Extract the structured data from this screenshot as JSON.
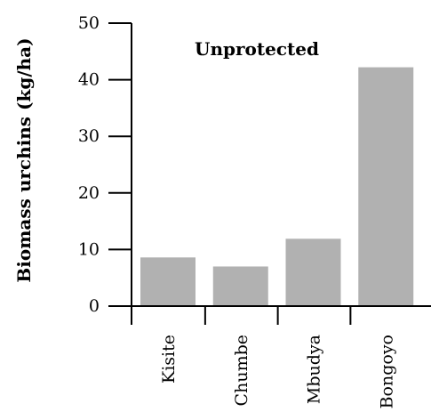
{
  "chart_data": {
    "type": "bar",
    "title": "Unprotected",
    "xlabel": "",
    "ylabel": "Biomass urchins (kg/ha)",
    "categories": [
      "Kisite",
      "Chumbe",
      "Mbudya",
      "Bongoyo"
    ],
    "values": [
      8.6,
      7.0,
      11.9,
      42.2
    ],
    "ylim": [
      0,
      50
    ],
    "yticks": [
      "0",
      "10",
      "20",
      "30",
      "40",
      "50"
    ],
    "grid": false,
    "legend": "none",
    "bar_color": "#b1b1b1"
  }
}
